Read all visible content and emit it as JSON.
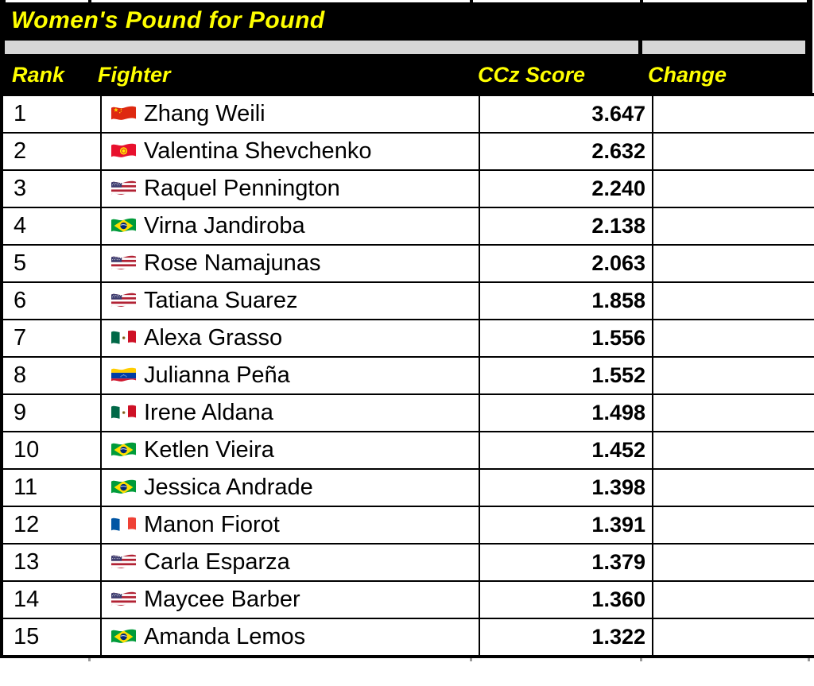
{
  "title": "Women's Pound for Pound",
  "columns": {
    "rank": "Rank",
    "fighter": "Fighter",
    "score": "CCz Score",
    "change": "Change"
  },
  "colors": {
    "band_bg": "#000000",
    "band_text": "#ffff00",
    "separator_fill": "#d6d6d6",
    "row_bg": "#ffffff",
    "grid": "#000000"
  },
  "rows": [
    {
      "rank": "1",
      "flag": "china",
      "fighter": "Zhang Weili",
      "ccz_score": "3.647",
      "change": ""
    },
    {
      "rank": "2",
      "flag": "kyrgyzstan",
      "fighter": "Valentina Shevchenko",
      "ccz_score": "2.632",
      "change": ""
    },
    {
      "rank": "3",
      "flag": "usa",
      "fighter": "Raquel Pennington",
      "ccz_score": "2.240",
      "change": ""
    },
    {
      "rank": "4",
      "flag": "brazil",
      "fighter": "Virna Jandiroba",
      "ccz_score": "2.138",
      "change": ""
    },
    {
      "rank": "5",
      "flag": "usa",
      "fighter": "Rose Namajunas",
      "ccz_score": "2.063",
      "change": ""
    },
    {
      "rank": "6",
      "flag": "usa",
      "fighter": "Tatiana Suarez",
      "ccz_score": "1.858",
      "change": ""
    },
    {
      "rank": "7",
      "flag": "mexico",
      "fighter": "Alexa Grasso",
      "ccz_score": "1.556",
      "change": ""
    },
    {
      "rank": "8",
      "flag": "venezuela",
      "fighter": "Julianna Peña",
      "ccz_score": "1.552",
      "change": ""
    },
    {
      "rank": "9",
      "flag": "mexico",
      "fighter": "Irene Aldana",
      "ccz_score": "1.498",
      "change": ""
    },
    {
      "rank": "10",
      "flag": "brazil",
      "fighter": "Ketlen Vieira",
      "ccz_score": "1.452",
      "change": ""
    },
    {
      "rank": "11",
      "flag": "brazil",
      "fighter": "Jessica Andrade",
      "ccz_score": "1.398",
      "change": ""
    },
    {
      "rank": "12",
      "flag": "france",
      "fighter": "Manon Fiorot",
      "ccz_score": "1.391",
      "change": ""
    },
    {
      "rank": "13",
      "flag": "usa",
      "fighter": "Carla Esparza",
      "ccz_score": "1.379",
      "change": ""
    },
    {
      "rank": "14",
      "flag": "usa",
      "fighter": "Maycee Barber",
      "ccz_score": "1.360",
      "change": ""
    },
    {
      "rank": "15",
      "flag": "brazil",
      "fighter": "Amanda Lemos",
      "ccz_score": "1.322",
      "change": ""
    }
  ]
}
